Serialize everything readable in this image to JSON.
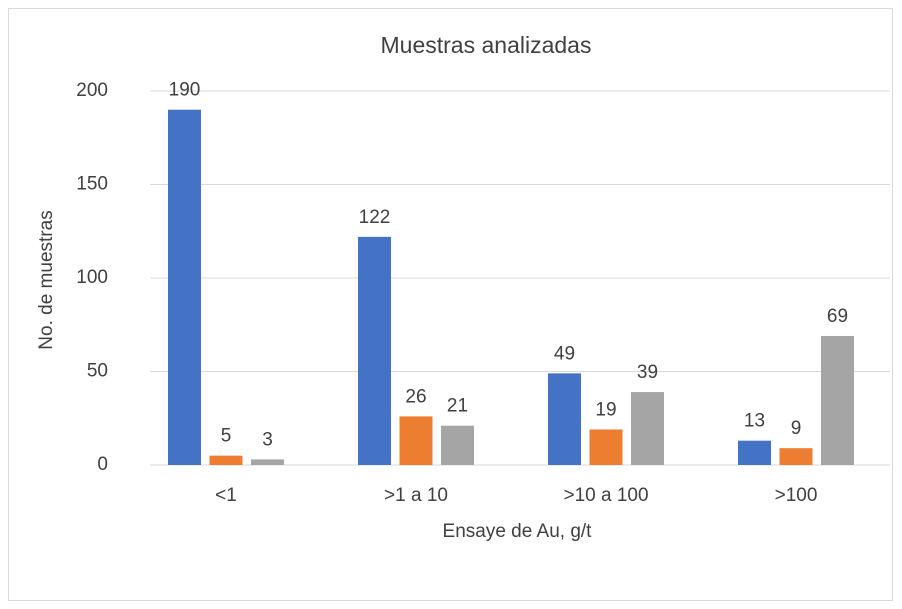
{
  "chart_data": {
    "type": "bar",
    "title": "Muestras analizadas",
    "x_label": "Ensaye de Au, g/t",
    "y_label": "No. de muestras",
    "categories": [
      "<1",
      ">1 a 10",
      ">10 a 100",
      ">100"
    ],
    "series": [
      {
        "color": "#4472c4",
        "values": [
          190,
          122,
          49,
          13
        ]
      },
      {
        "color": "#ed7d31",
        "values": [
          5,
          26,
          19,
          9
        ]
      },
      {
        "color": "#a5a5a5",
        "values": [
          3,
          21,
          39,
          69
        ]
      }
    ],
    "ylim": [
      0,
      200
    ],
    "yticks": [
      0,
      50,
      100,
      150,
      200
    ],
    "grid": true
  }
}
